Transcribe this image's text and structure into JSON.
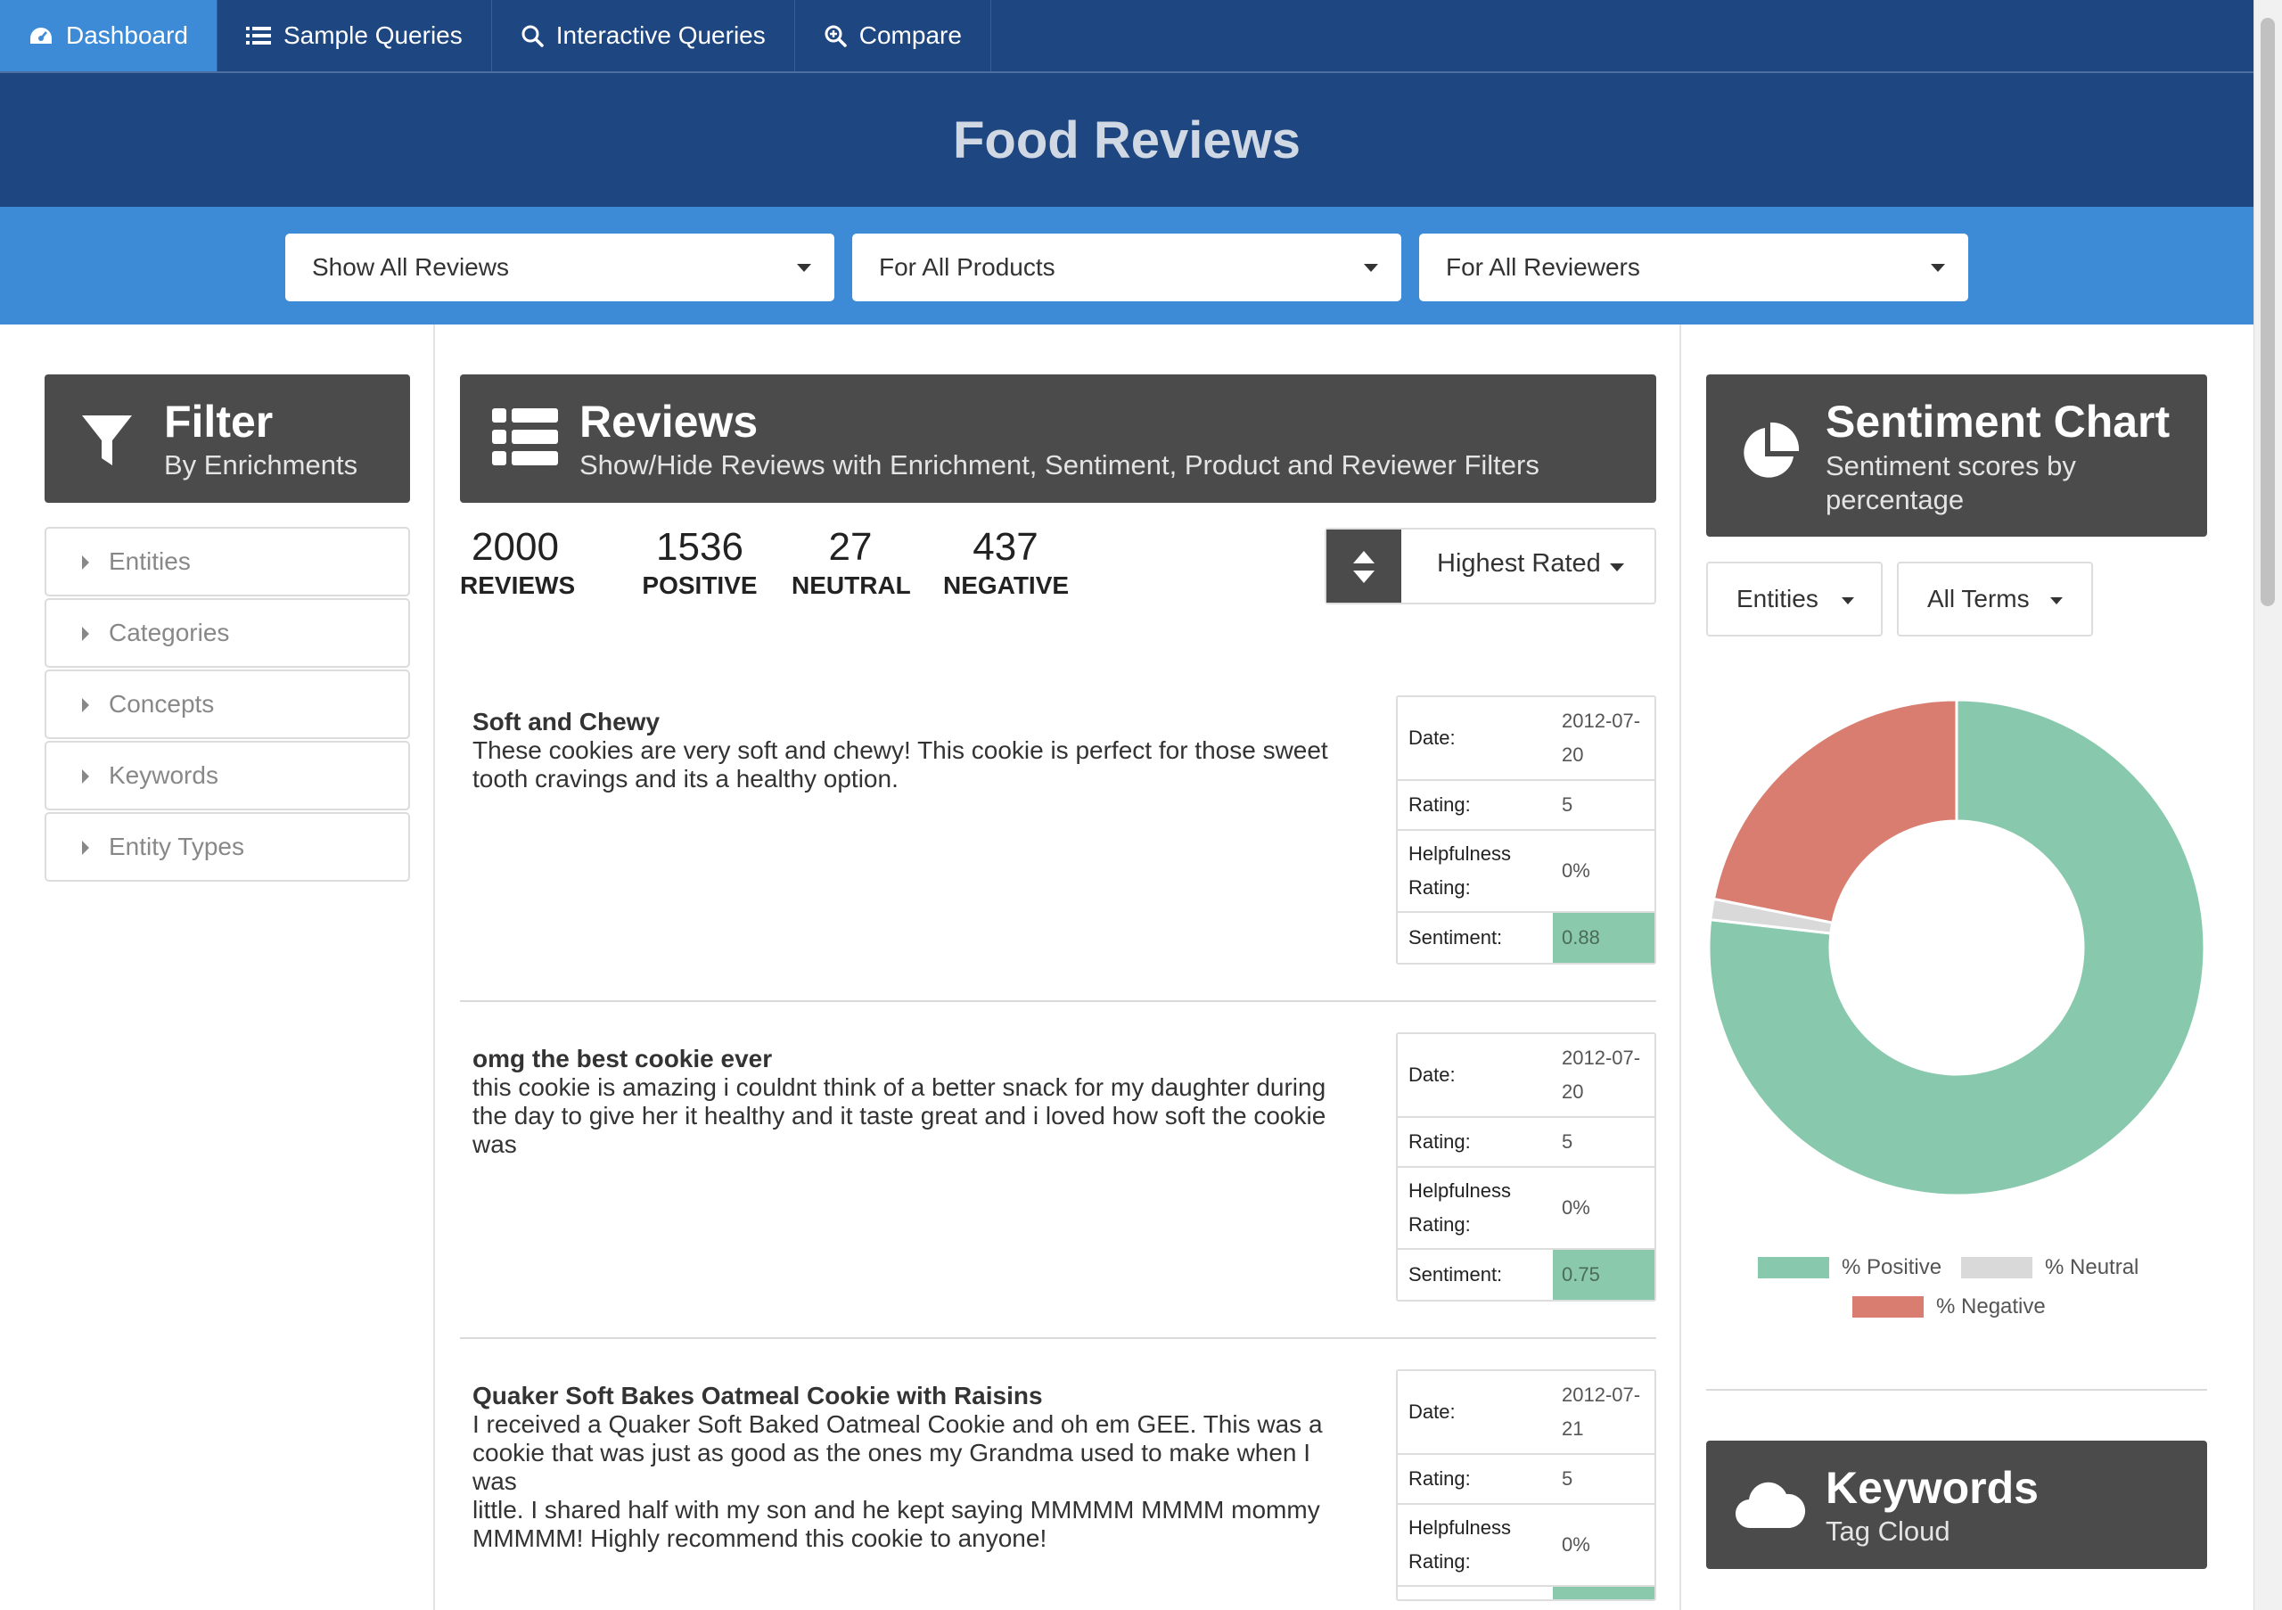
{
  "nav": {
    "items": [
      {
        "label": "Dashboard",
        "icon": "dashboard-icon",
        "active": true
      },
      {
        "label": "Sample Queries",
        "icon": "list-icon",
        "active": false
      },
      {
        "label": "Interactive Queries",
        "icon": "search-icon",
        "active": false
      },
      {
        "label": "Compare",
        "icon": "zoom-search-icon",
        "active": false
      }
    ]
  },
  "page_title": "Food Reviews",
  "filters": {
    "reviews": "Show All Reviews",
    "products": "For All Products",
    "reviewers": "For All Reviewers"
  },
  "filter_panel": {
    "title": "Filter",
    "subtitle": "By Enrichments",
    "items": [
      "Entities",
      "Categories",
      "Concepts",
      "Keywords",
      "Entity Types"
    ]
  },
  "reviews_panel": {
    "title": "Reviews",
    "subtitle": "Show/Hide Reviews with Enrichment, Sentiment, Product and Reviewer Filters",
    "stats": [
      {
        "num": "2000",
        "label": "REVIEWS"
      },
      {
        "num": "1536",
        "label": "POSITIVE"
      },
      {
        "num": "27",
        "label": "NEUTRAL"
      },
      {
        "num": "437",
        "label": "NEGATIVE"
      }
    ],
    "sort": "Highest Rated",
    "labels": {
      "date": "Date:",
      "rating": "Rating:",
      "help_1": "Helpfulness",
      "help_2": "Rating:",
      "sentiment": "Sentiment:"
    },
    "items": [
      {
        "title": "Soft and Chewy",
        "lines": [
          "These cookies are very soft and chewy! This cookie is perfect for those sweet",
          "tooth cravings and its a healthy option."
        ],
        "date_1": "2012-07-",
        "date_2": "20",
        "rating": "5",
        "helpfulness": "0%",
        "sentiment": "0.88"
      },
      {
        "title": "omg the best cookie ever",
        "lines": [
          "this cookie is amazing i couldnt think of a better snack for my daughter during",
          "the day to give her it healthy and it taste great and i loved how soft the cookie",
          "was"
        ],
        "date_1": "2012-07-",
        "date_2": "20",
        "rating": "5",
        "helpfulness": "0%",
        "sentiment": "0.75"
      },
      {
        "title": "Quaker Soft Bakes Oatmeal Cookie with Raisins",
        "lines": [
          "I received a Quaker Soft Baked Oatmeal Cookie and oh em GEE. This was a",
          "cookie that was just as good as the ones my Grandma used to make when I was",
          "little. I shared half with my son and he kept saying MMMMM MMMM mommy",
          "MMMMM! Highly recommend this cookie to anyone!"
        ],
        "date_1": "2012-07-",
        "date_2": "21",
        "rating": "5",
        "helpfulness": "0%",
        "sentiment": ""
      }
    ]
  },
  "sentiment_panel": {
    "title": "Sentiment Chart",
    "subtitle_1": "Sentiment scores by",
    "subtitle_2": "percentage",
    "type_select": "Entities",
    "terms_select": "All Terms"
  },
  "chart_data": {
    "type": "pie",
    "variant": "donut",
    "categories": [
      "% Positive",
      "% Neutral",
      "% Negative"
    ],
    "values": [
      76.8,
      1.35,
      21.85
    ],
    "colors": [
      "#88c9ad",
      "#d9d9d9",
      "#d97d70"
    ],
    "legend_position": "bottom"
  },
  "keywords_panel": {
    "title": "Keywords",
    "subtitle": "Tag Cloud"
  },
  "colors": {
    "nav_bg": "#1e4680",
    "accent": "#3d8bd6",
    "panel_header": "#4b4b4b",
    "positive": "#88c9ad",
    "negative": "#d97d70",
    "neutral": "#d9d9d9"
  }
}
